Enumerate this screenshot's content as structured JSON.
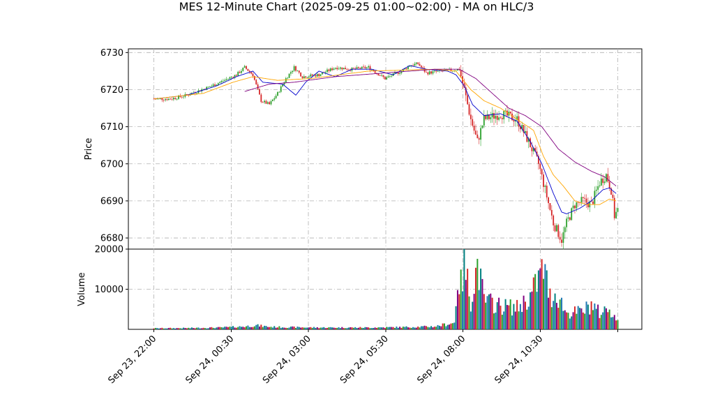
{
  "title": "MES 12-Minute Chart (2025-09-25 01:00~02:00) - MA on HLC/3",
  "chart_data": [
    {
      "type": "candlestick",
      "panel": "price",
      "ylabel": "Price",
      "ylim": [
        6677,
        6731
      ],
      "yticks": [
        6680,
        6690,
        6700,
        6710,
        6720,
        6730
      ],
      "grid": true,
      "up_color": "#2ca02c",
      "down_color": "#d62728",
      "ma_series": [
        {
          "color": "#0000cd",
          "anchors": [
            [
              0,
              6717.5
            ],
            [
              20,
              6718.5
            ],
            [
              38,
              6721
            ],
            [
              50,
              6723.5
            ],
            [
              60,
              6725
            ],
            [
              66,
              6722
            ],
            [
              78,
              6721.5
            ],
            [
              86,
              6718.5
            ],
            [
              92,
              6722
            ],
            [
              100,
              6725
            ],
            [
              110,
              6723.5
            ],
            [
              120,
              6725.5
            ],
            [
              132,
              6725.5
            ],
            [
              145,
              6724
            ],
            [
              155,
              6726.5
            ],
            [
              165,
              6725.5
            ],
            [
              178,
              6725
            ],
            [
              183,
              6724
            ],
            [
              188,
              6721
            ],
            [
              193,
              6716
            ],
            [
              200,
              6713
            ],
            [
              210,
              6713.5
            ],
            [
              220,
              6711.5
            ],
            [
              228,
              6706
            ],
            [
              235,
              6700
            ],
            [
              242,
              6692
            ],
            [
              247,
              6687
            ],
            [
              250,
              6686.5
            ],
            [
              258,
              6688
            ],
            [
              265,
              6690
            ],
            [
              272,
              6693
            ],
            [
              276,
              6693.5
            ],
            [
              280,
              6692
            ]
          ]
        },
        {
          "color": "#ffa500",
          "anchors": [
            [
              0,
              6717.5
            ],
            [
              30,
              6719
            ],
            [
              48,
              6722
            ],
            [
              60,
              6723.5
            ],
            [
              75,
              6722.5
            ],
            [
              95,
              6723
            ],
            [
              130,
              6725
            ],
            [
              170,
              6725.5
            ],
            [
              183,
              6725
            ],
            [
              192,
              6720
            ],
            [
              200,
              6717
            ],
            [
              210,
              6715
            ],
            [
              220,
              6712
            ],
            [
              230,
              6709
            ],
            [
              236,
              6702
            ],
            [
              242,
              6697
            ],
            [
              248,
              6694
            ],
            [
              255,
              6690
            ],
            [
              262,
              6689
            ],
            [
              270,
              6689
            ],
            [
              276,
              6690.5
            ],
            [
              280,
              6690
            ]
          ]
        },
        {
          "color": "#800080",
          "anchors": [
            [
              55,
              6719.5
            ],
            [
              70,
              6721.5
            ],
            [
              85,
              6722
            ],
            [
              110,
              6723.5
            ],
            [
              140,
              6724.5
            ],
            [
              170,
              6725.5
            ],
            [
              185,
              6725.5
            ],
            [
              195,
              6723
            ],
            [
              205,
              6719
            ],
            [
              215,
              6715
            ],
            [
              225,
              6713
            ],
            [
              235,
              6710
            ],
            [
              245,
              6704
            ],
            [
              255,
              6700.5
            ],
            [
              265,
              6698
            ],
            [
              273,
              6696.5
            ],
            [
              280,
              6694
            ]
          ]
        }
      ],
      "price_path": [
        [
          0,
          6717.5
        ],
        [
          10,
          6717.5
        ],
        [
          20,
          6718.5
        ],
        [
          35,
          6721
        ],
        [
          50,
          6724
        ],
        [
          55,
          6726
        ],
        [
          60,
          6724
        ],
        [
          65,
          6717
        ],
        [
          70,
          6716
        ],
        [
          75,
          6719
        ],
        [
          80,
          6723
        ],
        [
          85,
          6726
        ],
        [
          90,
          6723.5
        ],
        [
          100,
          6724
        ],
        [
          110,
          6726
        ],
        [
          120,
          6725.5
        ],
        [
          130,
          6726
        ],
        [
          140,
          6723
        ],
        [
          150,
          6725
        ],
        [
          155,
          6726.5
        ],
        [
          160,
          6727
        ],
        [
          165,
          6724.5
        ],
        [
          175,
          6725
        ],
        [
          185,
          6725.5
        ],
        [
          188,
          6720
        ],
        [
          192,
          6712
        ],
        [
          196,
          6706
        ],
        [
          200,
          6712
        ],
        [
          210,
          6713.5
        ],
        [
          220,
          6712
        ],
        [
          227,
          6706
        ],
        [
          233,
          6700
        ],
        [
          237,
          6693
        ],
        [
          242,
          6684
        ],
        [
          247,
          6679.5
        ],
        [
          250,
          6684
        ],
        [
          255,
          6689
        ],
        [
          260,
          6690
        ],
        [
          265,
          6689
        ],
        [
          270,
          6695
        ],
        [
          274,
          6697
        ],
        [
          277,
          6693
        ],
        [
          279,
          6686
        ],
        [
          281,
          6687.5
        ]
      ]
    },
    {
      "type": "bar",
      "panel": "volume",
      "ylabel": "Volume",
      "ylim": [
        0,
        20000
      ],
      "yticks": [
        10000,
        20000
      ],
      "grid": true,
      "bar_colors": [
        "#d62728",
        "#2ca02c",
        "#1f77b4",
        "#008080",
        "#800080"
      ],
      "volume_anchors": [
        [
          0,
          300
        ],
        [
          20,
          350
        ],
        [
          40,
          500
        ],
        [
          55,
          800
        ],
        [
          62,
          1100
        ],
        [
          70,
          700
        ],
        [
          80,
          600
        ],
        [
          100,
          500
        ],
        [
          130,
          500
        ],
        [
          150,
          600
        ],
        [
          170,
          800
        ],
        [
          182,
          1800
        ],
        [
          184,
          14000
        ],
        [
          186,
          12000
        ],
        [
          188,
          18000
        ],
        [
          192,
          8000
        ],
        [
          196,
          18000
        ],
        [
          200,
          8000
        ],
        [
          210,
          6500
        ],
        [
          220,
          6000
        ],
        [
          228,
          9000
        ],
        [
          232,
          13000
        ],
        [
          236,
          17000
        ],
        [
          240,
          9000
        ],
        [
          244,
          10000
        ],
        [
          250,
          4500
        ],
        [
          260,
          5000
        ],
        [
          265,
          7000
        ],
        [
          270,
          4500
        ],
        [
          276,
          6000
        ],
        [
          281,
          2000
        ]
      ]
    }
  ],
  "xaxis": {
    "tick_labels": [
      "Sep 23, 22:00",
      "Sep 24, 00:30",
      "Sep 24, 03:00",
      "Sep 24, 05:30",
      "Sep 24, 08:00",
      "Sep 24, 10:30"
    ]
  }
}
